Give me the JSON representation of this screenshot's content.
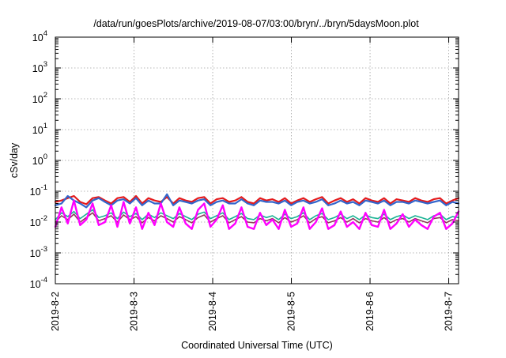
{
  "chart_data": {
    "type": "line",
    "title": "/data/run/goesPlots/archive/2019-08-07/03:00/bryn/../bryn/5daysMoon.plot",
    "xlabel": "Coordinated Universal Time (UTC)",
    "ylabel": "cSv/day",
    "yscale": "log",
    "ylim": [
      0.0001,
      10000
    ],
    "xlim": [
      "2019-08-02 00:00",
      "2019-08-07 03:00"
    ],
    "grid": true,
    "legend": "none",
    "y_ticks": [
      {
        "base": "10",
        "exp": "-4",
        "value": 0.0001
      },
      {
        "base": "10",
        "exp": "-3",
        "value": 0.001
      },
      {
        "base": "10",
        "exp": "-2",
        "value": 0.01
      },
      {
        "base": "10",
        "exp": "-1",
        "value": 0.1
      },
      {
        "base": "10",
        "exp": "0",
        "value": 1
      },
      {
        "base": "10",
        "exp": "1",
        "value": 10
      },
      {
        "base": "10",
        "exp": "2",
        "value": 100
      },
      {
        "base": "10",
        "exp": "3",
        "value": 1000
      },
      {
        "base": "10",
        "exp": "4",
        "value": 10000
      }
    ],
    "x_ticks": [
      "2019-8-2",
      "2019-8-3",
      "2019-8-4",
      "2019-8-5",
      "2019-8-6",
      "2019-8-7"
    ],
    "series": [
      {
        "color": "#e41a1c",
        "values": [
          0.045,
          0.05,
          0.06,
          0.07,
          0.045,
          0.038,
          0.06,
          0.065,
          0.05,
          0.04,
          0.06,
          0.065,
          0.045,
          0.07,
          0.04,
          0.06,
          0.05,
          0.045,
          0.065,
          0.04,
          0.06,
          0.05,
          0.045,
          0.06,
          0.065,
          0.04,
          0.055,
          0.06,
          0.045,
          0.05,
          0.065,
          0.045,
          0.04,
          0.06,
          0.05,
          0.055,
          0.045,
          0.06,
          0.04,
          0.05,
          0.06,
          0.045,
          0.055,
          0.065,
          0.04,
          0.05,
          0.06,
          0.045,
          0.055,
          0.04,
          0.06,
          0.05,
          0.045,
          0.06,
          0.04,
          0.055,
          0.05,
          0.045,
          0.06,
          0.05,
          0.045,
          0.055,
          0.06,
          0.04,
          0.05,
          0.06
        ]
      },
      {
        "color": "#3366cc",
        "values": [
          0.035,
          0.04,
          0.07,
          0.05,
          0.04,
          0.03,
          0.05,
          0.06,
          0.045,
          0.035,
          0.05,
          0.055,
          0.04,
          0.06,
          0.035,
          0.05,
          0.04,
          0.04,
          0.08,
          0.035,
          0.05,
          0.045,
          0.04,
          0.05,
          0.055,
          0.035,
          0.045,
          0.05,
          0.04,
          0.04,
          0.055,
          0.04,
          0.035,
          0.05,
          0.045,
          0.045,
          0.04,
          0.05,
          0.035,
          0.045,
          0.05,
          0.04,
          0.045,
          0.055,
          0.035,
          0.04,
          0.05,
          0.04,
          0.045,
          0.035,
          0.05,
          0.045,
          0.04,
          0.05,
          0.035,
          0.045,
          0.045,
          0.04,
          0.05,
          0.045,
          0.04,
          0.045,
          0.05,
          0.035,
          0.045,
          0.04
        ]
      },
      {
        "color": "#1ab394",
        "values": [
          0.012,
          0.02,
          0.015,
          0.022,
          0.013,
          0.018,
          0.025,
          0.014,
          0.016,
          0.02,
          0.013,
          0.021,
          0.015,
          0.019,
          0.012,
          0.018,
          0.014,
          0.02,
          0.016,
          0.013,
          0.019,
          0.015,
          0.012,
          0.018,
          0.021,
          0.013,
          0.016,
          0.02,
          0.012,
          0.015,
          0.019,
          0.013,
          0.012,
          0.017,
          0.014,
          0.016,
          0.012,
          0.018,
          0.013,
          0.015,
          0.02,
          0.012,
          0.016,
          0.019,
          0.012,
          0.014,
          0.018,
          0.013,
          0.016,
          0.012,
          0.017,
          0.014,
          0.013,
          0.018,
          0.012,
          0.015,
          0.017,
          0.013,
          0.016,
          0.014,
          0.012,
          0.016,
          0.018,
          0.012,
          0.015,
          0.014
        ]
      },
      {
        "color": "#8e3a5a",
        "values": [
          0.01,
          0.016,
          0.012,
          0.018,
          0.01,
          0.014,
          0.02,
          0.011,
          0.013,
          0.016,
          0.01,
          0.017,
          0.012,
          0.015,
          0.0095,
          0.014,
          0.011,
          0.016,
          0.013,
          0.01,
          0.015,
          0.012,
          0.0095,
          0.014,
          0.017,
          0.01,
          0.013,
          0.016,
          0.0095,
          0.012,
          0.015,
          0.01,
          0.0095,
          0.013,
          0.011,
          0.013,
          0.0095,
          0.014,
          0.01,
          0.012,
          0.016,
          0.0095,
          0.013,
          0.015,
          0.0095,
          0.011,
          0.014,
          0.01,
          0.013,
          0.0095,
          0.013,
          0.011,
          0.01,
          0.014,
          0.0095,
          0.012,
          0.013,
          0.01,
          0.013,
          0.011,
          0.0095,
          0.013,
          0.014,
          0.0095,
          0.012,
          0.011
        ]
      },
      {
        "color": "#ff00ff",
        "values": [
          0.007,
          0.03,
          0.009,
          0.05,
          0.008,
          0.012,
          0.04,
          0.008,
          0.01,
          0.035,
          0.007,
          0.045,
          0.009,
          0.03,
          0.006,
          0.02,
          0.008,
          0.04,
          0.01,
          0.007,
          0.03,
          0.009,
          0.006,
          0.025,
          0.04,
          0.007,
          0.012,
          0.035,
          0.006,
          0.009,
          0.03,
          0.007,
          0.006,
          0.02,
          0.008,
          0.012,
          0.006,
          0.025,
          0.007,
          0.009,
          0.03,
          0.006,
          0.01,
          0.028,
          0.006,
          0.008,
          0.022,
          0.007,
          0.01,
          0.006,
          0.02,
          0.008,
          0.007,
          0.025,
          0.006,
          0.009,
          0.018,
          0.007,
          0.012,
          0.008,
          0.006,
          0.015,
          0.02,
          0.006,
          0.009,
          0.022
        ]
      }
    ]
  }
}
